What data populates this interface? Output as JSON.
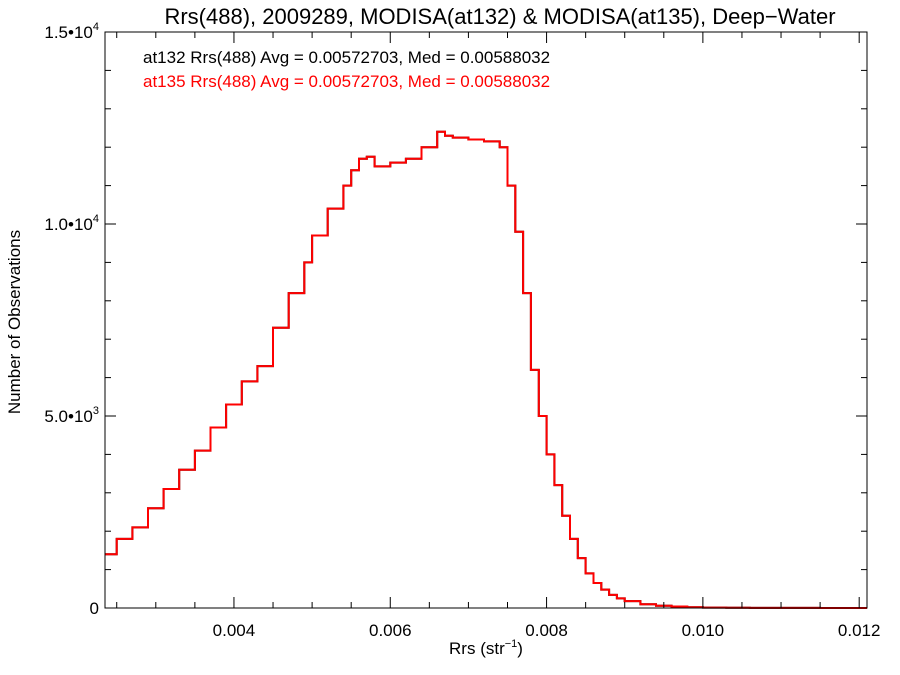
{
  "chart_data": {
    "type": "line",
    "title": "Rrs(488), 2009289, MODISA(at132) & MODISA(at135), Deep−Water",
    "xlabel": "Rrs (str⁻¹)",
    "ylabel": "Number of Observations",
    "xlim": [
      0.00235,
      0.0121
    ],
    "ylim": [
      0,
      15000
    ],
    "xticks": [
      0.004,
      0.006,
      0.008,
      0.01,
      0.012
    ],
    "xtick_labels": [
      "0.004",
      "0.006",
      "0.008",
      "0.010",
      "0.012"
    ],
    "yticks": [
      0,
      5000,
      10000,
      15000
    ],
    "ytick_labels": [
      {
        "mantissa": "0",
        "exponent": ""
      },
      {
        "mantissa": "5.0•10",
        "exponent": "3"
      },
      {
        "mantissa": "1.0•10",
        "exponent": "4"
      },
      {
        "mantissa": "1.5•10",
        "exponent": "4"
      }
    ],
    "grid": false,
    "annotations": [
      {
        "text": "at132 Rrs(488) Avg = 0.00572703, Med = 0.00588032",
        "color": "#000000"
      },
      {
        "text": "at135 Rrs(488) Avg = 0.00572703, Med = 0.00588032",
        "color": "#ff0000"
      }
    ],
    "series": [
      {
        "name": "at132",
        "color": "#000000",
        "x": [
          0.00235,
          0.0025,
          0.0027,
          0.0029,
          0.0031,
          0.0033,
          0.0035,
          0.0037,
          0.0039,
          0.0041,
          0.0043,
          0.0045,
          0.0047,
          0.0049,
          0.005,
          0.0052,
          0.0054,
          0.0055,
          0.0056,
          0.0057,
          0.0058,
          0.006,
          0.0062,
          0.0064,
          0.0066,
          0.0067,
          0.0068,
          0.007,
          0.0072,
          0.0074,
          0.0075,
          0.0076,
          0.0077,
          0.0078,
          0.0079,
          0.008,
          0.0081,
          0.0082,
          0.0083,
          0.0084,
          0.0085,
          0.0086,
          0.0087,
          0.0088,
          0.0089,
          0.009,
          0.0092,
          0.0094,
          0.0096,
          0.0098,
          0.01,
          0.0103,
          0.0106,
          0.011,
          0.0115,
          0.0121
        ],
        "y": [
          1400,
          1800,
          2100,
          2600,
          3100,
          3600,
          4100,
          4700,
          5300,
          5900,
          6300,
          7300,
          8200,
          9000,
          9700,
          10400,
          11000,
          11400,
          11700,
          11750,
          11500,
          11600,
          11700,
          12000,
          12400,
          12300,
          12250,
          12200,
          12150,
          12000,
          11000,
          9800,
          8200,
          6200,
          5000,
          4000,
          3200,
          2400,
          1800,
          1300,
          900,
          650,
          480,
          340,
          250,
          180,
          100,
          60,
          40,
          20,
          10,
          5,
          3,
          2,
          1,
          1
        ]
      },
      {
        "name": "at135",
        "color": "#ff0000",
        "x": [
          0.00235,
          0.0025,
          0.0027,
          0.0029,
          0.0031,
          0.0033,
          0.0035,
          0.0037,
          0.0039,
          0.0041,
          0.0043,
          0.0045,
          0.0047,
          0.0049,
          0.005,
          0.0052,
          0.0054,
          0.0055,
          0.0056,
          0.0057,
          0.0058,
          0.006,
          0.0062,
          0.0064,
          0.0066,
          0.0067,
          0.0068,
          0.007,
          0.0072,
          0.0074,
          0.0075,
          0.0076,
          0.0077,
          0.0078,
          0.0079,
          0.008,
          0.0081,
          0.0082,
          0.0083,
          0.0084,
          0.0085,
          0.0086,
          0.0087,
          0.0088,
          0.0089,
          0.009,
          0.0092,
          0.0094,
          0.0096,
          0.0098,
          0.01,
          0.0103,
          0.0106,
          0.011,
          0.0115,
          0.0121
        ],
        "y": [
          1400,
          1800,
          2100,
          2600,
          3100,
          3600,
          4100,
          4700,
          5300,
          5900,
          6300,
          7300,
          8200,
          9000,
          9700,
          10400,
          11000,
          11400,
          11700,
          11750,
          11500,
          11600,
          11700,
          12000,
          12400,
          12300,
          12250,
          12200,
          12150,
          12000,
          11000,
          9800,
          8200,
          6200,
          5000,
          4000,
          3200,
          2400,
          1800,
          1300,
          900,
          650,
          480,
          340,
          250,
          180,
          100,
          60,
          40,
          20,
          10,
          5,
          3,
          2,
          1,
          1
        ]
      }
    ]
  }
}
